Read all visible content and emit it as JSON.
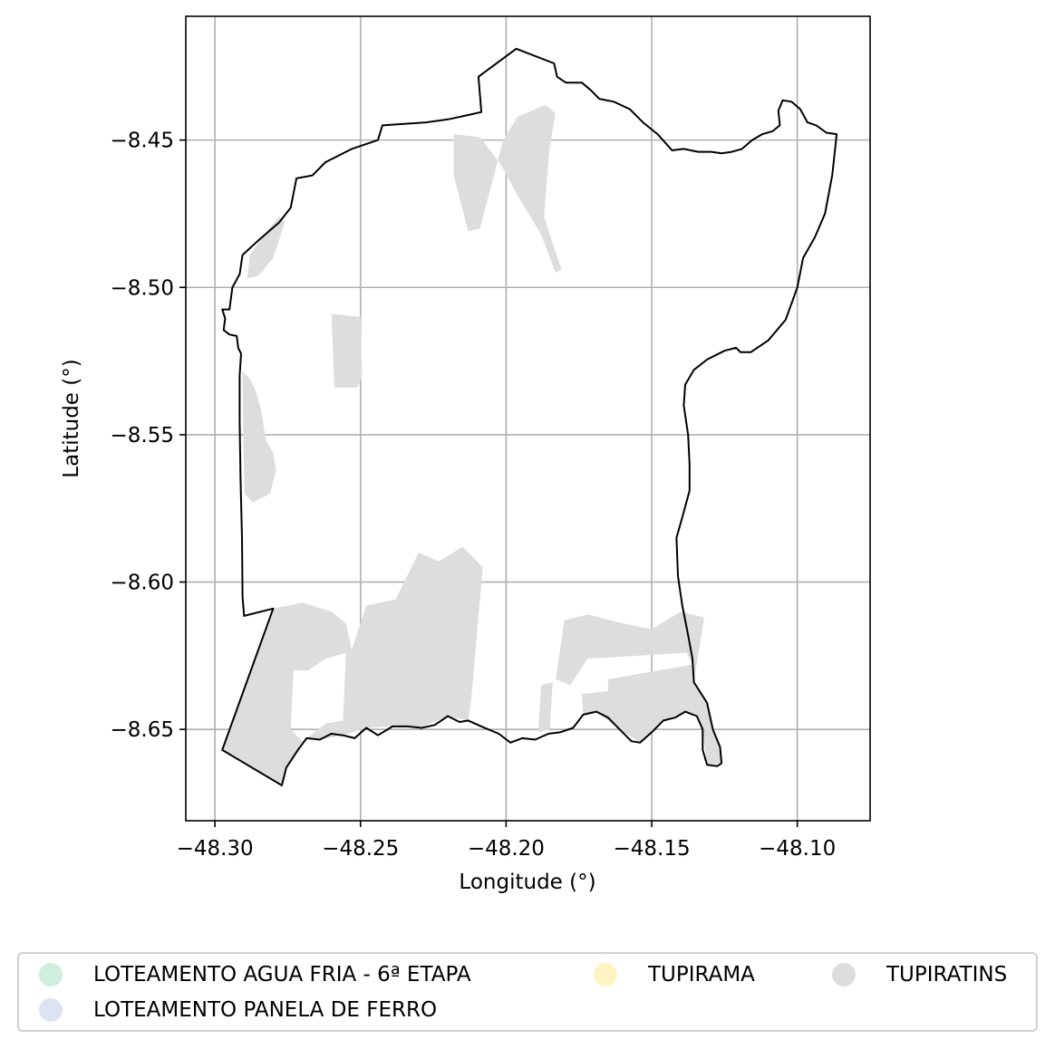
{
  "chart_data": {
    "type": "map",
    "xlabel": "Longitude (°)",
    "ylabel": "Latitude (°)",
    "xlim": [
      -48.31,
      -48.075
    ],
    "ylim": [
      -8.681,
      -8.408
    ],
    "x_ticks": [
      -48.3,
      -48.25,
      -48.2,
      -48.15,
      -48.1
    ],
    "x_tick_labels": [
      "−48.30",
      "−48.25",
      "−48.20",
      "−48.15",
      "−48.10"
    ],
    "y_ticks": [
      -8.45,
      -8.5,
      -8.55,
      -8.6,
      -8.65
    ],
    "y_tick_labels": [
      "−8.45",
      "−8.50",
      "−8.55",
      "−8.60",
      "−8.65"
    ],
    "grid": true,
    "boundary_color": "#000000",
    "legend_position": "bottom",
    "legend": [
      {
        "label": "LOTEAMENTO AGUA FRIA - 6ª ETAPA",
        "color": "#cfeede"
      },
      {
        "label": "TUPIRAMA",
        "color": "#fdf3c3"
      },
      {
        "label": "TUPIRATINS",
        "color": "#dddddd"
      },
      {
        "label": "LOTEAMENTO PANELA DE FERRO",
        "color": "#dce3f3"
      }
    ],
    "boundary": [
      [
        -48.2975,
        -8.5075
      ],
      [
        -48.2965,
        -8.5105
      ],
      [
        -48.297,
        -8.5145
      ],
      [
        -48.295,
        -8.516
      ],
      [
        -48.2925,
        -8.5165
      ],
      [
        -48.292,
        -8.5205
      ],
      [
        -48.291,
        -8.5225
      ],
      [
        -48.2915,
        -8.53
      ],
      [
        -48.2915,
        -8.545
      ],
      [
        -48.2912,
        -8.565
      ],
      [
        -48.2907,
        -8.585
      ],
      [
        -48.2905,
        -8.605
      ],
      [
        -48.29,
        -8.6115
      ],
      [
        -48.28,
        -8.609
      ],
      [
        -48.2975,
        -8.657
      ],
      [
        -48.277,
        -8.669
      ],
      [
        -48.2755,
        -8.663
      ],
      [
        -48.2715,
        -8.657
      ],
      [
        -48.2685,
        -8.653
      ],
      [
        -48.264,
        -8.6535
      ],
      [
        -48.26,
        -8.6515
      ],
      [
        -48.256,
        -8.652
      ],
      [
        -48.252,
        -8.653
      ],
      [
        -48.248,
        -8.6495
      ],
      [
        -48.244,
        -8.652
      ],
      [
        -48.239,
        -8.649
      ],
      [
        -48.234,
        -8.649
      ],
      [
        -48.229,
        -8.6495
      ],
      [
        -48.2245,
        -8.6485
      ],
      [
        -48.22,
        -8.6455
      ],
      [
        -48.216,
        -8.6475
      ],
      [
        -48.213,
        -8.647
      ],
      [
        -48.2085,
        -8.649
      ],
      [
        -48.2025,
        -8.6515
      ],
      [
        -48.1985,
        -8.6545
      ],
      [
        -48.1945,
        -8.653
      ],
      [
        -48.19,
        -8.6535
      ],
      [
        -48.1855,
        -8.6515
      ],
      [
        -48.1815,
        -8.651
      ],
      [
        -48.177,
        -8.6495
      ],
      [
        -48.1735,
        -8.645
      ],
      [
        -48.169,
        -8.644
      ],
      [
        -48.165,
        -8.646
      ],
      [
        -48.161,
        -8.65
      ],
      [
        -48.157,
        -8.654
      ],
      [
        -48.154,
        -8.6545
      ],
      [
        -48.15,
        -8.651
      ],
      [
        -48.146,
        -8.647
      ],
      [
        -48.142,
        -8.646
      ],
      [
        -48.1385,
        -8.644
      ],
      [
        -48.1345,
        -8.6455
      ],
      [
        -48.1325,
        -8.65
      ],
      [
        -48.1325,
        -8.657
      ],
      [
        -48.131,
        -8.662
      ],
      [
        -48.1275,
        -8.6625
      ],
      [
        -48.126,
        -8.6615
      ],
      [
        -48.1265,
        -8.656
      ],
      [
        -48.129,
        -8.65
      ],
      [
        -48.131,
        -8.641
      ],
      [
        -48.1355,
        -8.634
      ],
      [
        -48.136,
        -8.626
      ],
      [
        -48.1375,
        -8.618
      ],
      [
        -48.1395,
        -8.608
      ],
      [
        -48.141,
        -8.598
      ],
      [
        -48.1415,
        -8.585
      ],
      [
        -48.1395,
        -8.578
      ],
      [
        -48.137,
        -8.569
      ],
      [
        -48.137,
        -8.56
      ],
      [
        -48.1375,
        -8.55
      ],
      [
        -48.139,
        -8.54
      ],
      [
        -48.1385,
        -8.533
      ],
      [
        -48.1355,
        -8.528
      ],
      [
        -48.131,
        -8.5245
      ],
      [
        -48.125,
        -8.5215
      ],
      [
        -48.121,
        -8.5205
      ],
      [
        -48.1195,
        -8.522
      ],
      [
        -48.116,
        -8.522
      ],
      [
        -48.11,
        -8.518
      ],
      [
        -48.104,
        -8.511
      ],
      [
        -48.1,
        -8.5
      ],
      [
        -48.098,
        -8.49
      ],
      [
        -48.094,
        -8.483
      ],
      [
        -48.0905,
        -8.475
      ],
      [
        -48.088,
        -8.462
      ],
      [
        -48.087,
        -8.453
      ],
      [
        -48.0865,
        -8.448
      ],
      [
        -48.09,
        -8.4475
      ],
      [
        -48.0935,
        -8.445
      ],
      [
        -48.0965,
        -8.444
      ],
      [
        -48.099,
        -8.4395
      ],
      [
        -48.102,
        -8.437
      ],
      [
        -48.105,
        -8.4365
      ],
      [
        -48.1065,
        -8.44
      ],
      [
        -48.106,
        -8.445
      ],
      [
        -48.1085,
        -8.447
      ],
      [
        -48.112,
        -8.448
      ],
      [
        -48.1155,
        -8.45
      ],
      [
        -48.119,
        -8.453
      ],
      [
        -48.1225,
        -8.454
      ],
      [
        -48.126,
        -8.4545
      ],
      [
        -48.1295,
        -8.454
      ],
      [
        -48.134,
        -8.454
      ],
      [
        -48.139,
        -8.453
      ],
      [
        -48.143,
        -8.4535
      ],
      [
        -48.148,
        -8.448
      ],
      [
        -48.153,
        -8.444
      ],
      [
        -48.1575,
        -8.4395
      ],
      [
        -48.163,
        -8.437
      ],
      [
        -48.168,
        -8.436
      ],
      [
        -48.171,
        -8.433
      ],
      [
        -48.174,
        -8.4305
      ],
      [
        -48.1795,
        -8.4305
      ],
      [
        -48.1825,
        -8.4285
      ],
      [
        -48.1835,
        -8.424
      ],
      [
        -48.1965,
        -8.419
      ],
      [
        -48.2095,
        -8.4285
      ],
      [
        -48.2085,
        -8.4405
      ],
      [
        -48.213,
        -8.4415
      ],
      [
        -48.22,
        -8.443
      ],
      [
        -48.2275,
        -8.444
      ],
      [
        -48.2425,
        -8.445
      ],
      [
        -48.244,
        -8.45
      ],
      [
        -48.253,
        -8.453
      ],
      [
        -48.262,
        -8.4575
      ],
      [
        -48.2665,
        -8.462
      ],
      [
        -48.272,
        -8.463
      ],
      [
        -48.273,
        -8.468
      ],
      [
        -48.274,
        -8.473
      ],
      [
        -48.278,
        -8.478
      ],
      [
        -48.285,
        -8.484
      ],
      [
        -48.2905,
        -8.489
      ],
      [
        -48.2915,
        -8.4955
      ],
      [
        -48.294,
        -8.5
      ],
      [
        -48.295,
        -8.5075
      ],
      [
        -48.2975,
        -8.5075
      ]
    ],
    "fill_regions": [
      {
        "color": "#dddddd",
        "points": [
          [
            -48.2905,
            -8.5285
          ],
          [
            -48.288,
            -8.531
          ],
          [
            -48.286,
            -8.535
          ],
          [
            -48.284,
            -8.542
          ],
          [
            -48.2825,
            -8.552
          ],
          [
            -48.28,
            -8.556
          ],
          [
            -48.279,
            -8.562
          ],
          [
            -48.281,
            -8.57
          ],
          [
            -48.287,
            -8.573
          ],
          [
            -48.2898,
            -8.57
          ],
          [
            -48.2903,
            -8.55
          ]
        ]
      },
      {
        "color": "#dddddd",
        "points": [
          [
            -48.288,
            -8.489
          ],
          [
            -48.283,
            -8.482
          ],
          [
            -48.278,
            -8.476
          ],
          [
            -48.276,
            -8.478
          ],
          [
            -48.28,
            -8.49
          ],
          [
            -48.285,
            -8.496
          ],
          [
            -48.289,
            -8.497
          ]
        ]
      },
      {
        "color": "#dddddd",
        "points": [
          [
            -48.26,
            -8.509
          ],
          [
            -48.25,
            -8.51
          ],
          [
            -48.2495,
            -8.53
          ],
          [
            -48.251,
            -8.534
          ],
          [
            -48.259,
            -8.534
          ]
        ]
      },
      {
        "color": "#dddddd",
        "points": [
          [
            -48.218,
            -8.448
          ],
          [
            -48.209,
            -8.449
          ],
          [
            -48.202,
            -8.458
          ],
          [
            -48.196,
            -8.469
          ],
          [
            -48.188,
            -8.482
          ],
          [
            -48.183,
            -8.495
          ],
          [
            -48.181,
            -8.494
          ],
          [
            -48.187,
            -8.476
          ],
          [
            -48.185,
            -8.452
          ],
          [
            -48.183,
            -8.441
          ],
          [
            -48.1865,
            -8.438
          ],
          [
            -48.196,
            -8.442
          ],
          [
            -48.201,
            -8.45
          ],
          [
            -48.209,
            -8.48
          ],
          [
            -48.213,
            -8.481
          ],
          [
            -48.218,
            -8.462
          ]
        ]
      },
      {
        "color": "#dddddd",
        "points": [
          [
            -48.29,
            -8.611
          ],
          [
            -48.27,
            -8.607
          ],
          [
            -48.26,
            -8.61
          ],
          [
            -48.255,
            -8.614
          ],
          [
            -48.253,
            -8.623
          ],
          [
            -48.248,
            -8.608
          ],
          [
            -48.238,
            -8.606
          ],
          [
            -48.23,
            -8.59
          ],
          [
            -48.223,
            -8.593
          ],
          [
            -48.215,
            -8.588
          ],
          [
            -48.208,
            -8.595
          ],
          [
            -48.212,
            -8.64
          ],
          [
            -48.213,
            -8.647
          ],
          [
            -48.22,
            -8.6455
          ],
          [
            -48.23,
            -8.6495
          ],
          [
            -48.24,
            -8.649
          ],
          [
            -48.248,
            -8.6495
          ],
          [
            -48.256,
            -8.652
          ],
          [
            -48.264,
            -8.6535
          ],
          [
            -48.2685,
            -8.653
          ],
          [
            -48.262,
            -8.648
          ],
          [
            -48.256,
            -8.647
          ],
          [
            -48.255,
            -8.624
          ],
          [
            -48.262,
            -8.626
          ],
          [
            -48.268,
            -8.63
          ],
          [
            -48.273,
            -8.63
          ],
          [
            -48.274,
            -8.65
          ],
          [
            -48.27,
            -8.654
          ],
          [
            -48.2755,
            -8.663
          ],
          [
            -48.277,
            -8.669
          ],
          [
            -48.2975,
            -8.657
          ],
          [
            -48.28,
            -8.609
          ]
        ]
      },
      {
        "color": "#dddddd",
        "points": [
          [
            -48.18,
            -8.613
          ],
          [
            -48.172,
            -8.611
          ],
          [
            -48.16,
            -8.614
          ],
          [
            -48.15,
            -8.616
          ],
          [
            -48.14,
            -8.61
          ],
          [
            -48.132,
            -8.612
          ],
          [
            -48.1355,
            -8.634
          ],
          [
            -48.131,
            -8.641
          ],
          [
            -48.129,
            -8.65
          ],
          [
            -48.1265,
            -8.656
          ],
          [
            -48.126,
            -8.6615
          ],
          [
            -48.131,
            -8.662
          ],
          [
            -48.1325,
            -8.65
          ],
          [
            -48.1345,
            -8.6455
          ],
          [
            -48.1385,
            -8.644
          ],
          [
            -48.146,
            -8.647
          ],
          [
            -48.154,
            -8.6545
          ],
          [
            -48.161,
            -8.65
          ],
          [
            -48.169,
            -8.644
          ],
          [
            -48.1735,
            -8.645
          ],
          [
            -48.174,
            -8.638
          ],
          [
            -48.165,
            -8.637
          ],
          [
            -48.165,
            -8.633
          ],
          [
            -48.136,
            -8.628
          ],
          [
            -48.138,
            -8.624
          ],
          [
            -48.172,
            -8.626
          ],
          [
            -48.178,
            -8.635
          ],
          [
            -48.183,
            -8.633
          ]
        ]
      },
      {
        "color": "#dddddd",
        "points": [
          [
            -48.188,
            -8.635
          ],
          [
            -48.184,
            -8.634
          ],
          [
            -48.185,
            -8.65
          ],
          [
            -48.189,
            -8.651
          ]
        ]
      }
    ]
  }
}
